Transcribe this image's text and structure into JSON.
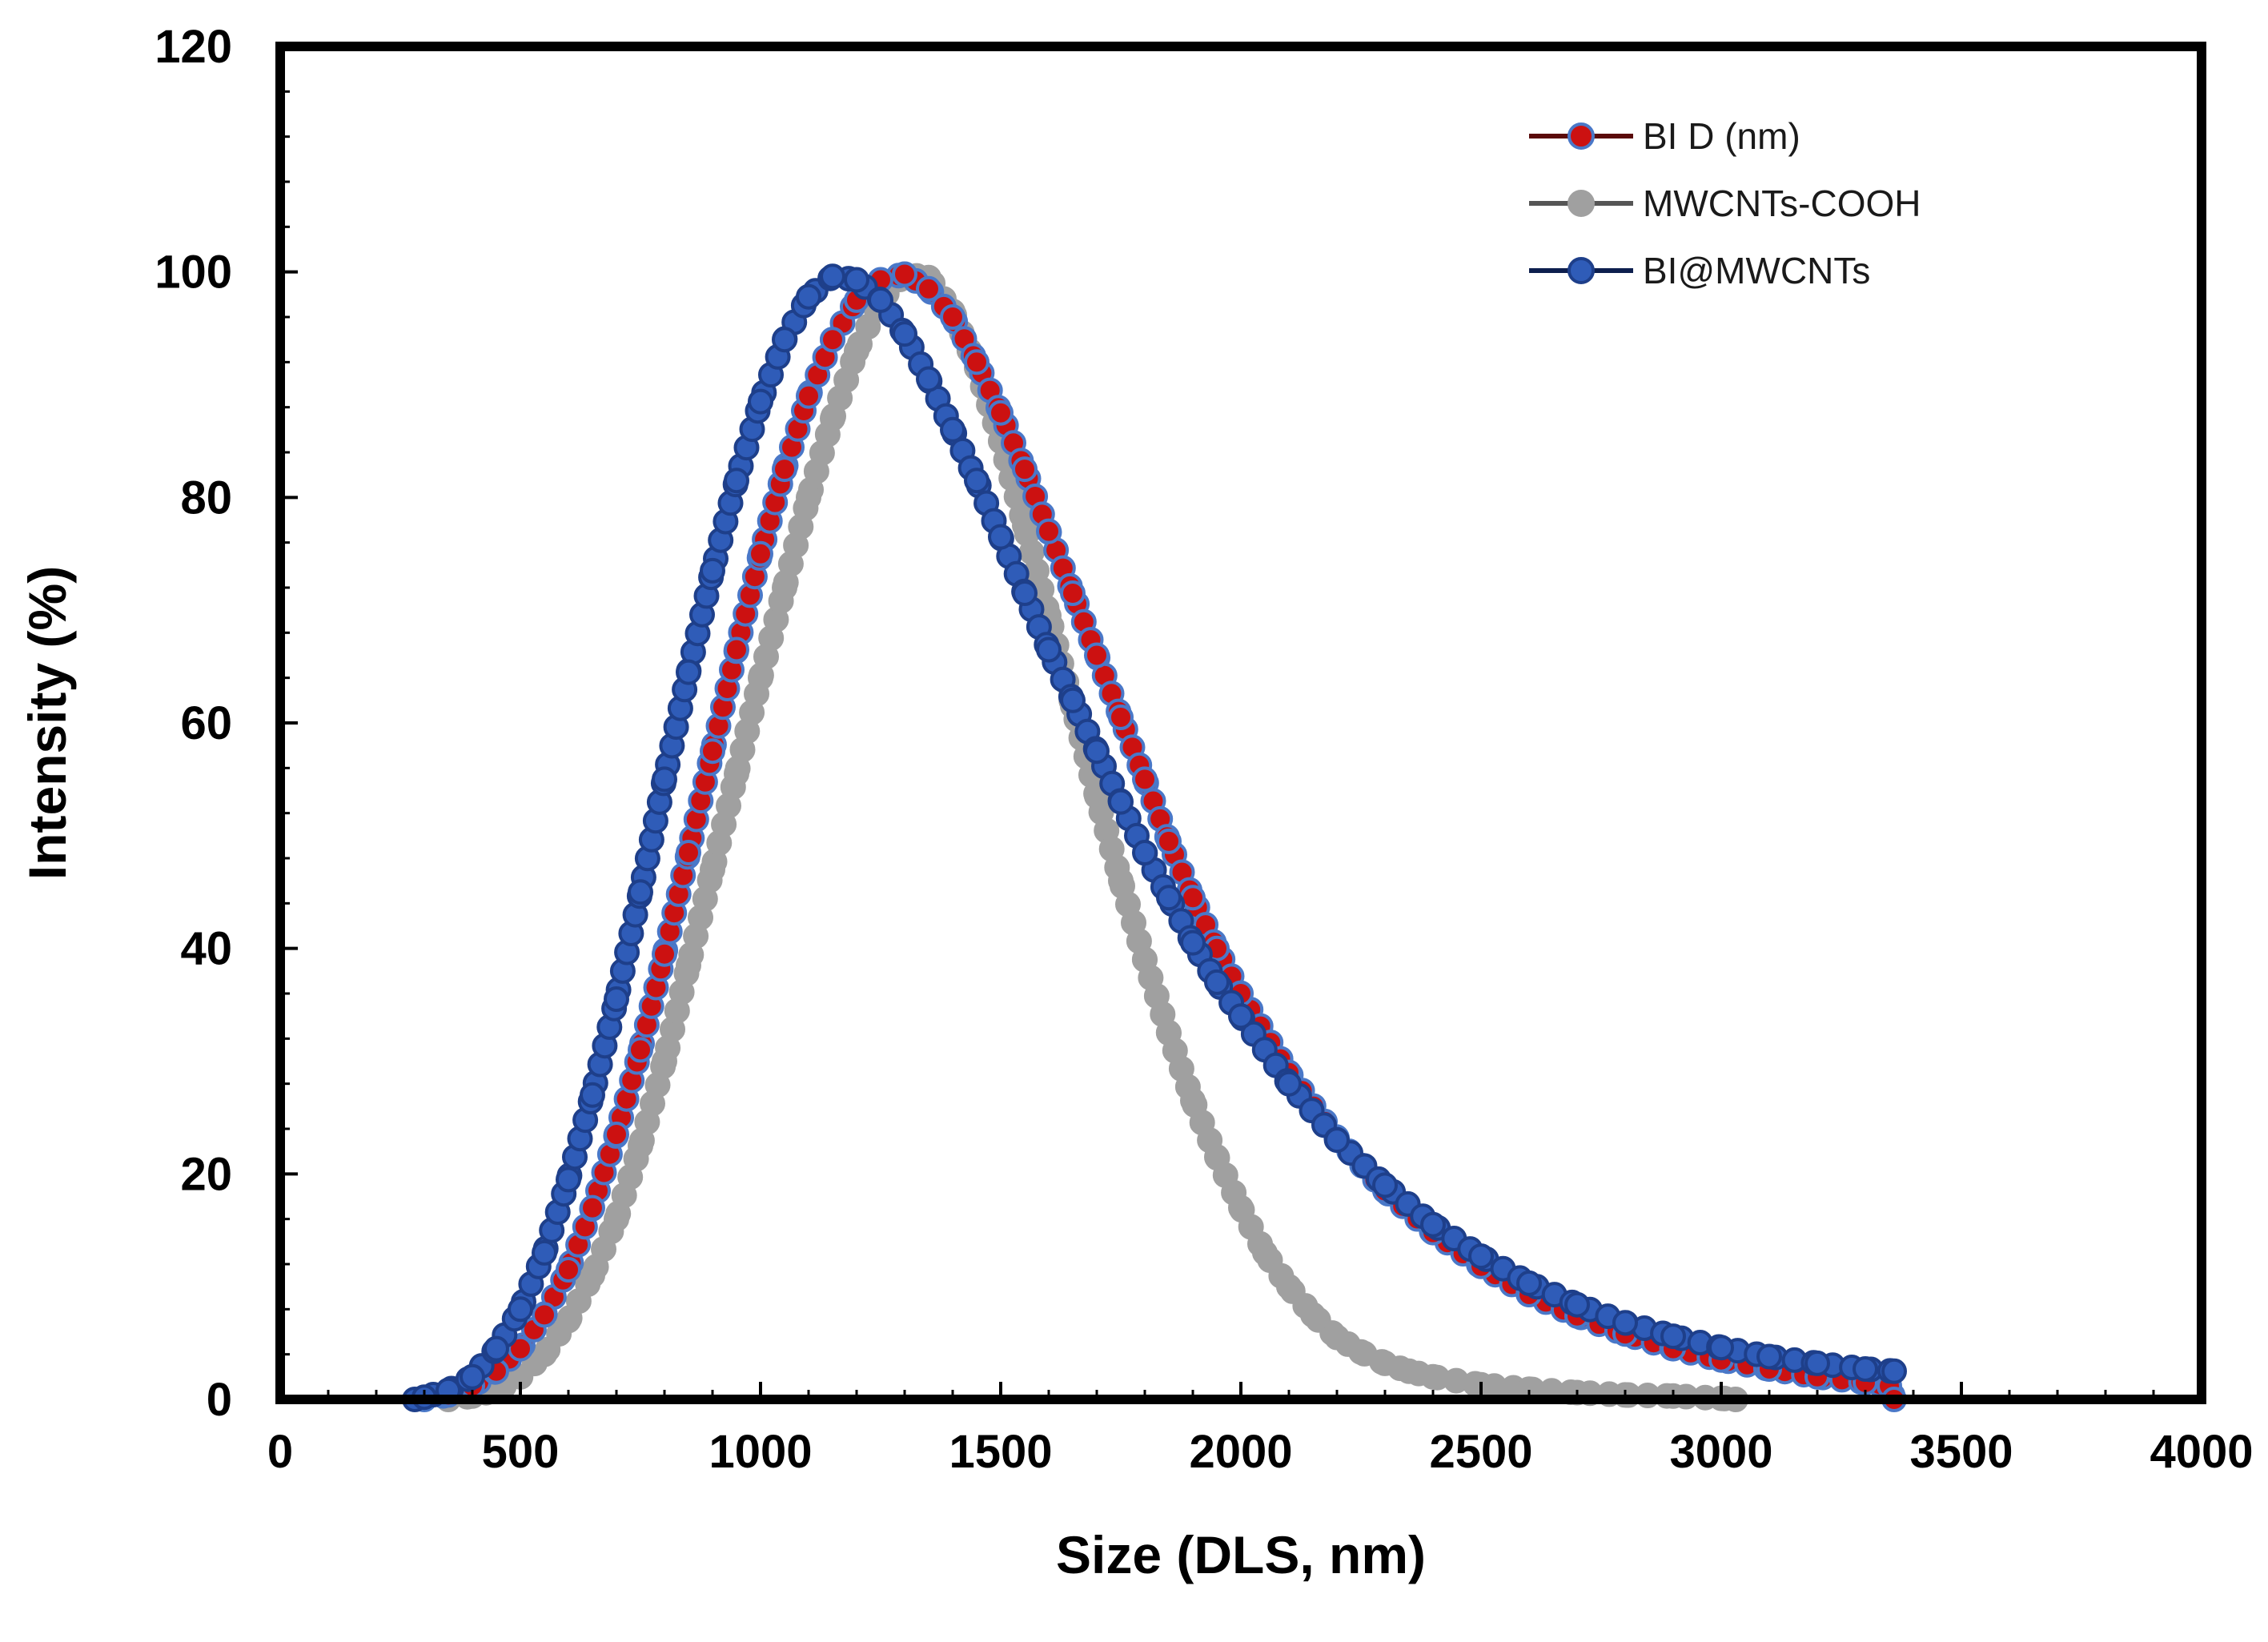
{
  "chart_data": {
    "type": "scatter",
    "title": "",
    "xlabel": "Size (DLS, nm)",
    "ylabel": "Intensity (%)",
    "xlim": [
      0,
      4000
    ],
    "ylim": [
      0,
      120
    ],
    "xticks": [
      0,
      500,
      1000,
      1500,
      2000,
      2500,
      3000,
      3500,
      4000
    ],
    "yticks": [
      0,
      20,
      40,
      60,
      80,
      100,
      120
    ],
    "x_tick_labels": [
      "0",
      "500",
      "1000",
      "1500",
      "2000",
      "2500",
      "3000",
      "3500",
      "4000"
    ],
    "y_tick_labels": [
      "0",
      "20",
      "40",
      "60",
      "80",
      "100",
      "120"
    ],
    "grid": false,
    "legend_position": "top-right",
    "series": [
      {
        "name": "BI D (nm)",
        "line_color": "#5a0a0a",
        "marker_fill": "#cc1111",
        "marker_edge": "#4a78c8",
        "x": [
          300,
          350,
          400,
          450,
          500,
          550,
          600,
          650,
          700,
          750,
          800,
          850,
          900,
          950,
          1000,
          1050,
          1100,
          1150,
          1200,
          1250,
          1300,
          1350,
          1400,
          1450,
          1500,
          1550,
          1600,
          1650,
          1700,
          1750,
          1800,
          1850,
          1900,
          1950,
          2000,
          2100,
          2200,
          2300,
          2400,
          2500,
          2600,
          2700,
          2800,
          2900,
          3000,
          3100,
          3200,
          3300,
          3350,
          3360
        ],
        "y": [
          0,
          0.4,
          1.2,
          2.5,
          4.5,
          7.5,
          11.5,
          17,
          23.5,
          31,
          39.5,
          48.5,
          57.5,
          66.5,
          75,
          82.5,
          89,
          94,
          97.5,
          99.3,
          99.8,
          98.5,
          96,
          92,
          87.5,
          82.5,
          77,
          71.5,
          66,
          60.5,
          55,
          49.5,
          44.5,
          40,
          36,
          29,
          23.2,
          18.5,
          14.8,
          11.8,
          9.3,
          7.4,
          5.8,
          4.5,
          3.5,
          2.7,
          2,
          1.5,
          1.2,
          0
        ]
      },
      {
        "name": "MWCNTs-COOH",
        "line_color": "#555555",
        "marker_fill": "#a0a0a0",
        "marker_edge": "#a0a0a0",
        "x": [
          350,
          400,
          450,
          500,
          550,
          600,
          650,
          700,
          750,
          800,
          850,
          900,
          950,
          1000,
          1050,
          1100,
          1150,
          1200,
          1250,
          1300,
          1350,
          1400,
          1450,
          1500,
          1550,
          1600,
          1650,
          1700,
          1750,
          1800,
          1850,
          1900,
          1950,
          2000,
          2050,
          2100,
          2150,
          2200,
          2250,
          2300,
          2350,
          2400,
          2500,
          2600,
          2700,
          2800,
          2900,
          3000,
          3030
        ],
        "y": [
          0,
          0.3,
          0.8,
          2,
          4,
          7,
          11,
          16,
          22.5,
          30,
          38.5,
          47,
          55.5,
          64,
          72,
          80,
          87,
          93,
          97.5,
          99.8,
          99.5,
          96.5,
          91.5,
          85,
          77.5,
          69.5,
          61.5,
          53.5,
          46,
          39,
          32.5,
          26.5,
          21.5,
          17,
          13,
          10,
          7.5,
          5.5,
          4.2,
          3.2,
          2.5,
          2,
          1.3,
          0.9,
          0.6,
          0.4,
          0.3,
          0.1,
          0
        ]
      },
      {
        "name": "BI@MWCNTs",
        "line_color": "#0d1f4e",
        "marker_fill": "#2f5cb8",
        "marker_edge": "#1e3f8a",
        "x": [
          280,
          300,
          350,
          400,
          450,
          500,
          550,
          600,
          650,
          700,
          750,
          800,
          850,
          900,
          950,
          1000,
          1050,
          1100,
          1150,
          1200,
          1250,
          1300,
          1350,
          1400,
          1450,
          1500,
          1550,
          1600,
          1650,
          1700,
          1750,
          1800,
          1850,
          1900,
          1950,
          2000,
          2100,
          2200,
          2300,
          2400,
          2500,
          2600,
          2700,
          2800,
          2900,
          3000,
          3100,
          3200,
          3300,
          3360
        ],
        "y": [
          0,
          0.2,
          0.8,
          2,
          4.5,
          8,
          13,
          19.5,
          27,
          35.5,
          45,
          55,
          64.5,
          73.5,
          81.5,
          88.5,
          94,
          97.8,
          99.6,
          99.3,
          97.5,
          94.5,
          90.5,
          86,
          81.5,
          76.5,
          71.5,
          66.5,
          62,
          57.5,
          53,
          48.5,
          44.5,
          40.5,
          37,
          34,
          28,
          23,
          19,
          15.5,
          12.7,
          10.3,
          8.4,
          6.8,
          5.6,
          4.6,
          3.8,
          3.2,
          2.7,
          2.5
        ]
      }
    ]
  }
}
